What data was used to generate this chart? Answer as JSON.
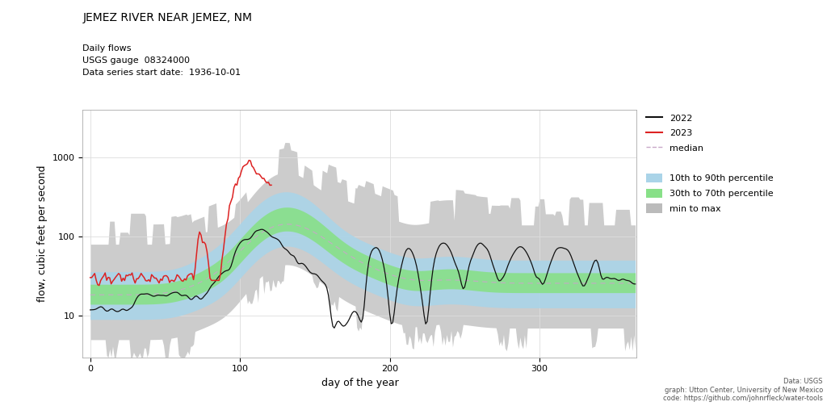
{
  "title": "JEMEZ RIVER NEAR JEMEZ, NM",
  "subtitle_lines": [
    "Daily flows",
    "USGS gauge  08324000",
    "Data series start date:  1936-10-01"
  ],
  "xlabel": "day of the year",
  "ylabel": "flow, cubic feet per second",
  "footnote": "Data: USGS\ngraph: Utton Center, University of New Mexico\ncode: https://github.com/johnrfleck/water-tools",
  "ylim": [
    3,
    4000
  ],
  "xlim": [
    -5,
    365
  ],
  "yticks": [
    10,
    100,
    1000
  ],
  "xticks": [
    0,
    100,
    200,
    300
  ],
  "colors": {
    "min_max": "#bbbbbb",
    "p10_90": "#aad4e8",
    "p30_70": "#88e088",
    "median": "#c8a8c8",
    "year2022": "#111111",
    "year2023": "#dd2222"
  },
  "background": "#ffffff",
  "grid_color": "#dddddd"
}
